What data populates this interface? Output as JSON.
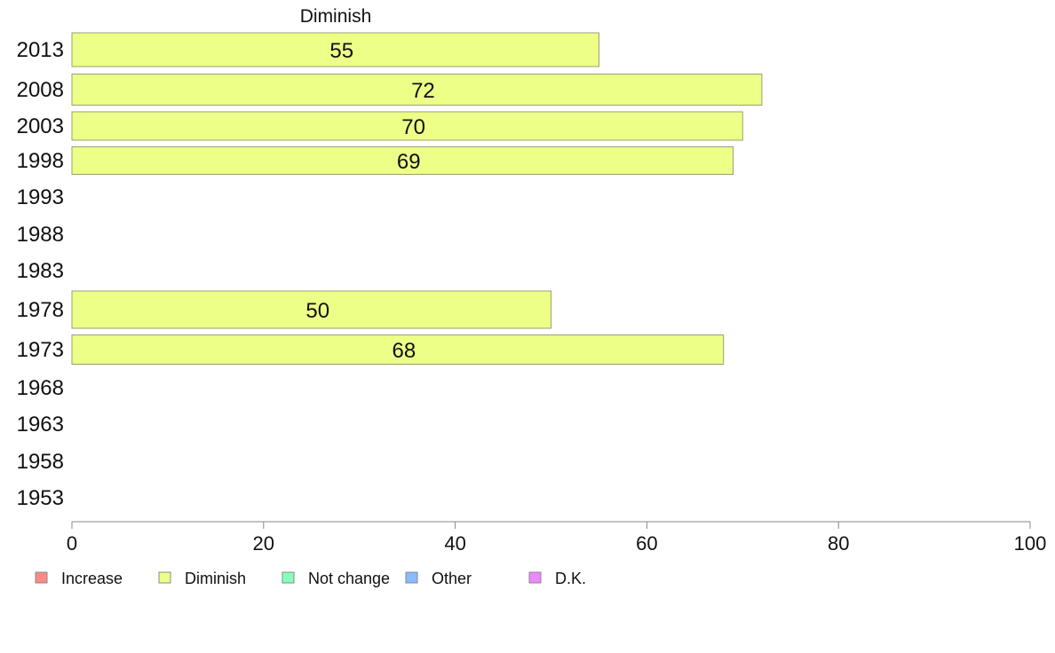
{
  "chart_data": {
    "type": "bar",
    "orientation": "horizontal",
    "title": "Diminish",
    "categories": [
      "2013",
      "2008",
      "2003",
      "1998",
      "1993",
      "1988",
      "1983",
      "1978",
      "1973",
      "1968",
      "1963",
      "1958",
      "1953"
    ],
    "series": [
      {
        "name": "Diminish",
        "color": "#eeff88",
        "values": [
          55,
          72,
          70,
          69,
          null,
          null,
          null,
          50,
          68,
          null,
          null,
          null,
          null
        ]
      }
    ],
    "xlim": [
      0,
      100
    ],
    "xticks": [
      "0",
      "20",
      "40",
      "60",
      "80",
      "100"
    ],
    "xlabel": "",
    "ylabel": "",
    "grid": false,
    "legend_position": "bottom",
    "legend": [
      {
        "label": "Increase",
        "color": "#ff8888"
      },
      {
        "label": "Diminish",
        "color": "#eeff88"
      },
      {
        "label": "Not change",
        "color": "#88ffbb"
      },
      {
        "label": "Other",
        "color": "#88bbff"
      },
      {
        "label": "D.K.",
        "color": "#ee88ff"
      }
    ]
  }
}
